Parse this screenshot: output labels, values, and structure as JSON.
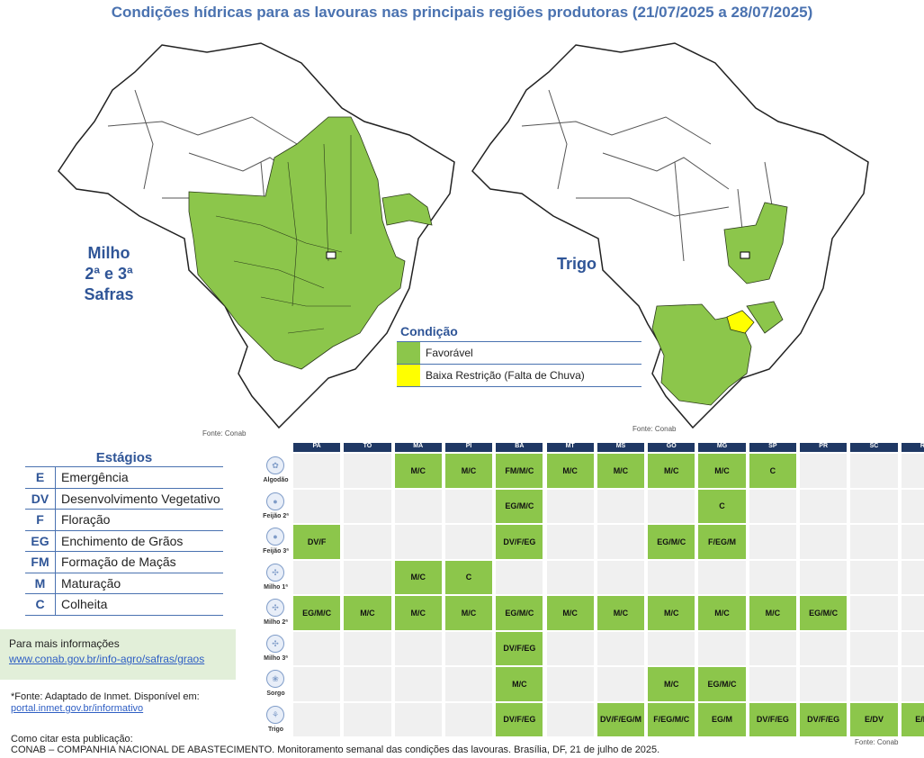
{
  "title": "Condições hídricas para as lavouras nas principais regiões produtoras (21/07/2025 a 28/07/2025)",
  "maps": {
    "milho_label_lines": [
      "Milho",
      "2ª e 3ª",
      "Safras"
    ],
    "trigo_label": "Trigo",
    "source_left": "Fonte: Conab",
    "source_right": "Fonte: Conab"
  },
  "legend": {
    "heading": "Condição",
    "items": [
      {
        "label": "Favorável",
        "color": "#8cc64b"
      },
      {
        "label": "Baixa Restrição (Falta de Chuva)",
        "color": "#ffff00"
      }
    ]
  },
  "stages": {
    "heading": "Estágios",
    "items": [
      {
        "code": "E",
        "label": "Emergência"
      },
      {
        "code": "DV",
        "label": "Desenvolvimento Vegetativo"
      },
      {
        "code": "F",
        "label": "Floração"
      },
      {
        "code": "EG",
        "label": "Enchimento de Grãos"
      },
      {
        "code": "FM",
        "label": "Formação de Maçãs"
      },
      {
        "code": "M",
        "label": "Maturação"
      },
      {
        "code": "C",
        "label": "Colheita"
      }
    ]
  },
  "more_info": {
    "text": "Para mais informações",
    "link": "www.conab.gov.br/info-agro/safras/graos"
  },
  "inmet_source": {
    "text": "*Fonte: Adaptado de Inmet. Disponível em:",
    "link": "portal.inmet.gov.br/informativo"
  },
  "citation": {
    "heading": "Como citar esta publicação:",
    "text": "CONAB – COMPANHIA NACIONAL DE ABASTECIMENTO. Monitoramento semanal das condições das lavouras. Brasília, DF, 21 de julho de 2025."
  },
  "table": {
    "states": [
      "PA",
      "TO",
      "MA",
      "PI",
      "BA",
      "MT",
      "MS",
      "GO",
      "MG",
      "SP",
      "PR",
      "SC",
      "RS"
    ],
    "rows": [
      {
        "crop": "Algodão",
        "icon": "cotton-icon",
        "cells": [
          "",
          "",
          "M/C",
          "M/C",
          "FM/M/C",
          "M/C",
          "M/C",
          "M/C",
          "M/C",
          "C",
          "",
          "",
          ""
        ]
      },
      {
        "crop": "Feijão 2ª",
        "icon": "bean-icon",
        "cells": [
          "",
          "",
          "",
          "",
          "EG/M/C",
          "",
          "",
          "",
          "C",
          "",
          "",
          "",
          ""
        ]
      },
      {
        "crop": "Feijão 3ª",
        "icon": "bean-icon",
        "cells": [
          "DV/F",
          "",
          "",
          "",
          "DV/F/EG",
          "",
          "",
          "EG/M/C",
          "F/EG/M",
          "",
          "",
          "",
          ""
        ]
      },
      {
        "crop": "Milho 1ª",
        "icon": "corn-icon",
        "cells": [
          "",
          "",
          "M/C",
          "C",
          "",
          "",
          "",
          "",
          "",
          "",
          "",
          "",
          ""
        ]
      },
      {
        "crop": "Milho 2ª",
        "icon": "corn-icon",
        "cells": [
          "EG/M/C",
          "M/C",
          "M/C",
          "M/C",
          "EG/M/C",
          "M/C",
          "M/C",
          "M/C",
          "M/C",
          "M/C",
          "EG/M/C",
          "",
          ""
        ]
      },
      {
        "crop": "Milho 3ª",
        "icon": "corn-icon",
        "cells": [
          "",
          "",
          "",
          "",
          "DV/F/EG",
          "",
          "",
          "",
          "",
          "",
          "",
          "",
          ""
        ]
      },
      {
        "crop": "Sorgo",
        "icon": "sorghum-icon",
        "cells": [
          "",
          "",
          "",
          "",
          "M/C",
          "",
          "",
          "M/C",
          "EG/M/C",
          "",
          "",
          "",
          ""
        ]
      },
      {
        "crop": "Trigo",
        "icon": "wheat-icon",
        "cells": [
          "",
          "",
          "",
          "",
          "DV/F/EG",
          "",
          "DV/F/EG/M",
          "F/EG/M/C",
          "EG/M",
          "DV/F/EG",
          "DV/F/EG",
          "E/DV",
          "E/DV"
        ]
      }
    ],
    "source": "Fonte: Conab"
  },
  "colors": {
    "favorable": "#8cc64b",
    "low_restriction": "#ffff00",
    "title": "#4a72b0"
  }
}
